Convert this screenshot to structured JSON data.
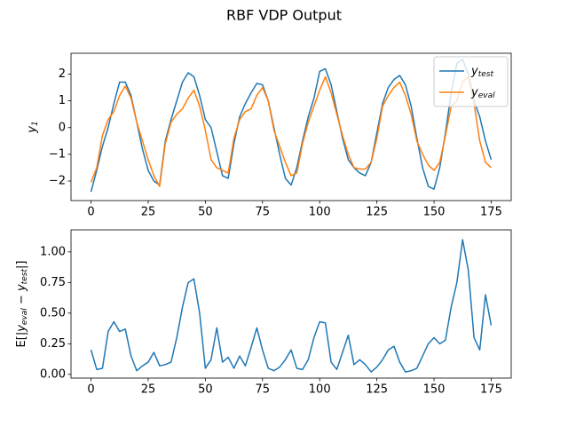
{
  "chart_data": [
    {
      "type": "line",
      "title": "RBF VDP Output",
      "ylabel": "y_1",
      "legend": "upper right",
      "x": [
        0,
        2.5,
        5,
        7.5,
        10,
        12.5,
        15,
        17.5,
        20,
        22.5,
        25,
        27.5,
        30,
        32.5,
        35,
        37.5,
        40,
        42.5,
        45,
        47.5,
        50,
        52.5,
        55,
        57.5,
        60,
        62.5,
        65,
        67.5,
        70,
        72.5,
        75,
        77.5,
        80,
        82.5,
        85,
        87.5,
        90,
        92.5,
        95,
        97.5,
        100,
        102.5,
        105,
        107.5,
        110,
        112.5,
        115,
        117.5,
        120,
        122.5,
        125,
        127.5,
        130,
        132.5,
        135,
        137.5,
        140,
        142.5,
        145,
        147.5,
        150,
        152.5,
        155,
        157.5,
        160,
        162.5,
        165,
        167.5,
        170,
        172.5,
        175
      ],
      "series": [
        {
          "name": "y_test",
          "color": "#1f77b4",
          "values": [
            -2.4,
            -1.6,
            -0.7,
            0.0,
            0.9,
            1.7,
            1.7,
            1.2,
            0.2,
            -0.8,
            -1.6,
            -2.0,
            -2.15,
            -0.5,
            0.3,
            1.0,
            1.7,
            2.05,
            1.9,
            1.2,
            0.3,
            0.0,
            -0.9,
            -1.8,
            -1.9,
            -0.6,
            0.4,
            0.9,
            1.3,
            1.65,
            1.6,
            1.0,
            0.0,
            -1.0,
            -1.9,
            -2.15,
            -1.5,
            -0.5,
            0.4,
            1.1,
            2.1,
            2.2,
            1.6,
            0.6,
            -0.4,
            -1.2,
            -1.5,
            -1.7,
            -1.8,
            -1.3,
            -0.2,
            0.9,
            1.5,
            1.8,
            1.95,
            1.6,
            0.8,
            -0.4,
            -1.5,
            -2.2,
            -2.3,
            -1.5,
            -0.2,
            1.3,
            2.4,
            2.55,
            2.0,
            1.0,
            0.4,
            -0.5,
            -1.2
          ]
        },
        {
          "name": "y_eval",
          "color": "#ff7f0e",
          "values": [
            -2.05,
            -1.5,
            -0.3,
            0.3,
            0.6,
            1.2,
            1.55,
            1.1,
            0.2,
            -0.5,
            -1.2,
            -1.8,
            -2.2,
            -0.6,
            0.2,
            0.5,
            0.7,
            1.1,
            1.4,
            0.8,
            -0.1,
            -1.2,
            -1.5,
            -1.6,
            -1.7,
            -0.4,
            0.3,
            0.6,
            0.7,
            1.2,
            1.5,
            1.0,
            -0.1,
            -0.7,
            -1.3,
            -1.8,
            -1.7,
            -0.6,
            0.2,
            0.8,
            1.4,
            1.9,
            1.3,
            0.5,
            -0.3,
            -1.0,
            -1.5,
            -1.55,
            -1.55,
            -1.3,
            -0.4,
            0.8,
            1.2,
            1.5,
            1.7,
            1.2,
            0.5,
            -0.5,
            -1.0,
            -1.4,
            -1.6,
            -1.3,
            -0.3,
            0.8,
            1.0,
            1.7,
            1.9,
            0.9,
            -0.5,
            -1.3,
            -1.5
          ]
        }
      ],
      "xlim": [
        -8.75,
        183.75
      ],
      "xticks": [
        0,
        25,
        50,
        75,
        100,
        125,
        150,
        175
      ],
      "ylim": [
        -2.73,
        2.78
      ],
      "yticks": [
        {
          "value": -2,
          "label": "−2"
        },
        {
          "value": -1,
          "label": "−1"
        },
        0,
        1,
        2
      ]
    },
    {
      "type": "line",
      "ylabel": "E[|y_eval − y_test|]",
      "x": [
        0,
        2.5,
        5,
        7.5,
        10,
        12.5,
        15,
        17.5,
        20,
        22.5,
        25,
        27.5,
        30,
        32.5,
        35,
        37.5,
        40,
        42.5,
        45,
        47.5,
        50,
        52.5,
        55,
        57.5,
        60,
        62.5,
        65,
        67.5,
        70,
        72.5,
        75,
        77.5,
        80,
        82.5,
        85,
        87.5,
        90,
        92.5,
        95,
        97.5,
        100,
        102.5,
        105,
        107.5,
        110,
        112.5,
        115,
        117.5,
        120,
        122.5,
        125,
        127.5,
        130,
        132.5,
        135,
        137.5,
        140,
        142.5,
        145,
        147.5,
        150,
        152.5,
        155,
        157.5,
        160,
        162.5,
        165,
        167.5,
        170,
        172.5,
        175
      ],
      "series": [
        {
          "color": "#1f77b4",
          "values": [
            0.2,
            0.04,
            0.05,
            0.35,
            0.43,
            0.35,
            0.37,
            0.15,
            0.03,
            0.07,
            0.1,
            0.18,
            0.07,
            0.08,
            0.1,
            0.3,
            0.55,
            0.75,
            0.78,
            0.5,
            0.05,
            0.12,
            0.38,
            0.1,
            0.14,
            0.05,
            0.15,
            0.07,
            0.22,
            0.38,
            0.2,
            0.05,
            0.03,
            0.06,
            0.12,
            0.2,
            0.05,
            0.04,
            0.12,
            0.3,
            0.43,
            0.42,
            0.1,
            0.04,
            0.18,
            0.32,
            0.08,
            0.12,
            0.08,
            0.02,
            0.06,
            0.12,
            0.2,
            0.23,
            0.1,
            0.02,
            0.03,
            0.05,
            0.15,
            0.25,
            0.3,
            0.25,
            0.28,
            0.55,
            0.75,
            1.1,
            0.85,
            0.3,
            0.2,
            0.65,
            0.4
          ]
        }
      ],
      "xlim": [
        -8.75,
        183.75
      ],
      "xticks": [
        0,
        25,
        50,
        75,
        100,
        125,
        150,
        175
      ],
      "ylim": [
        -0.03,
        1.18
      ],
      "yticks": [
        {
          "value": 0,
          "label": "0.00"
        },
        {
          "value": 0.25,
          "label": "0.25"
        },
        {
          "value": 0.5,
          "label": "0.50"
        },
        {
          "value": 0.75,
          "label": "0.75"
        },
        {
          "value": 1,
          "label": "1.00"
        }
      ]
    }
  ]
}
